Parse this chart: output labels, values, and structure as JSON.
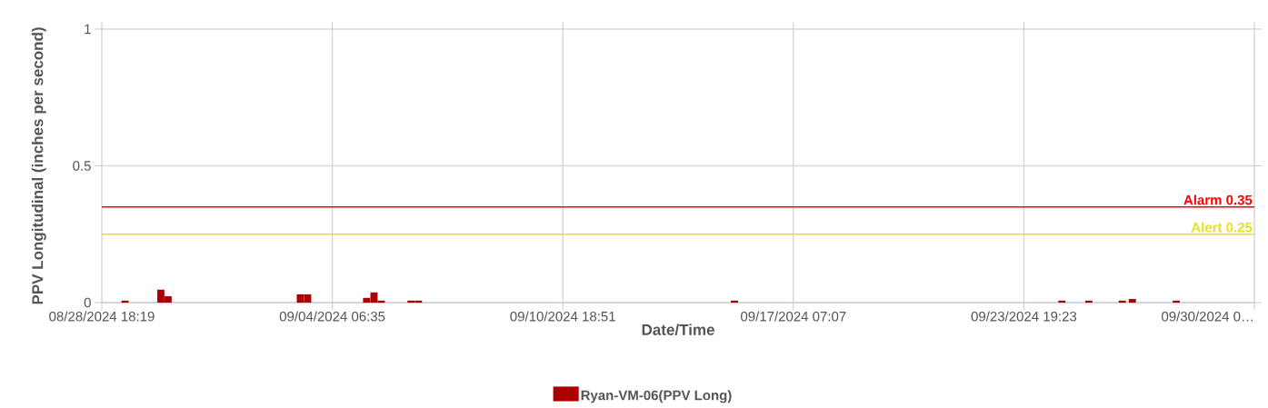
{
  "chart_data": {
    "type": "bar",
    "xlabel": "Date/Time",
    "ylabel": "PPV Longitudinal (inches per second)",
    "x": [
      "2024-08-29T10:05",
      "2024-08-30T10:20",
      "2024-08-30T15:15",
      "2024-09-03T08:55",
      "2024-09-03T13:50",
      "2024-09-05T05:50",
      "2024-09-05T10:50",
      "2024-09-05T15:45",
      "2024-09-06T11:55",
      "2024-09-06T16:55",
      "2024-09-15T15:10",
      "2024-09-24T21:10",
      "2024-09-25T15:25",
      "2024-09-26T14:05",
      "2024-09-26T20:55",
      "2024-09-28T02:40"
    ],
    "series": [
      {
        "name": "Ryan-VM-06(PPV Long)",
        "color": "#aa0000",
        "values": [
          0.007,
          0.047,
          0.023,
          0.03,
          0.03,
          0.017,
          0.037,
          0.007,
          0.007,
          0.007,
          0.007,
          0.007,
          0.007,
          0.007,
          0.013,
          0.007
        ]
      }
    ],
    "xlim": [
      "2024-08-28T18:19",
      "2024-09-30T07:39"
    ],
    "xticks": [
      {
        "value": "2024-08-28T18:19",
        "label": "08/28/2024 18:19"
      },
      {
        "value": "2024-09-04T06:35",
        "label": "09/04/2024 06:35"
      },
      {
        "value": "2024-09-10T18:51",
        "label": "09/10/2024 18:51"
      },
      {
        "value": "2024-09-17T07:07",
        "label": "09/17/2024 07:07"
      },
      {
        "value": "2024-09-23T19:23",
        "label": "09/23/2024 19:23"
      },
      {
        "value": "2024-09-30T07:39",
        "label": "09/30/2024 0…"
      }
    ],
    "ylim": [
      0,
      1
    ],
    "yticks": [
      0,
      0.5,
      1
    ],
    "ref_lines": [
      {
        "axis": "y",
        "value": 0.35,
        "label": "Alarm 0.35",
        "color": "#ff0000"
      },
      {
        "axis": "y",
        "value": 0.25,
        "label": "Alert 0.25",
        "color": "#e6e01e"
      }
    ],
    "grid": true,
    "legend": "bottom"
  }
}
